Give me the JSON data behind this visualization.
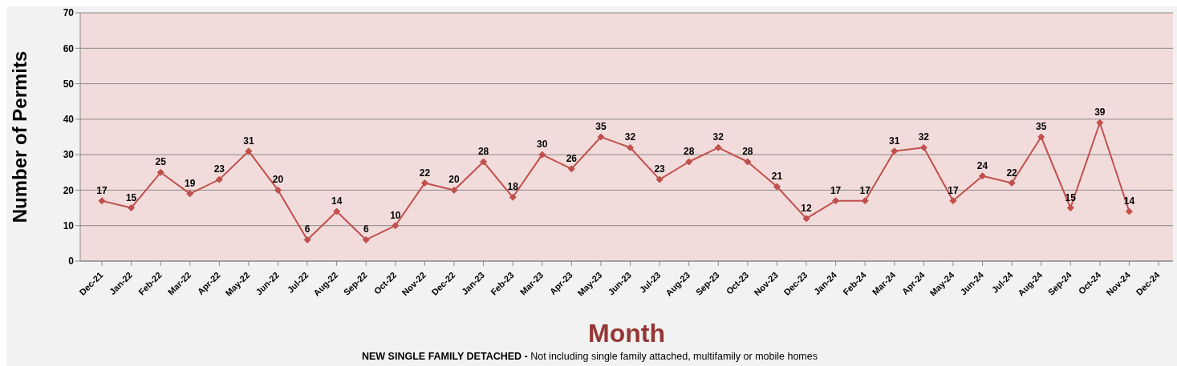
{
  "chart_data": {
    "type": "line",
    "xlabel": "Month",
    "ylabel": "Number of Permits",
    "annotations": [
      "NEW SINGLE FAMILY DETACHED -",
      "Not including single family attached, multifamily or mobile homes"
    ],
    "categories": [
      "Dec-21",
      "Jan-22",
      "Feb-22",
      "Mar-22",
      "Apr-22",
      "May-22",
      "Jun-22",
      "Jul-22",
      "Aug-22",
      "Sep-22",
      "Oct-22",
      "Nov-22",
      "Dec-22",
      "Jan-23",
      "Feb-23",
      "Mar-23",
      "Apr-23",
      "May-23",
      "Jun-23",
      "Jul-23",
      "Aug-23",
      "Sep-23",
      "Oct-23",
      "Nov-23",
      "Dec-23",
      "Jan-24",
      "Feb-24",
      "Mar-24",
      "Apr-24",
      "May-24",
      "Jun-24",
      "Jul-24",
      "Aug-24",
      "Sep-24",
      "Oct-24",
      "Nov-24",
      "Dec-24"
    ],
    "series": [
      {
        "color": "#c0504d",
        "values": [
          17,
          15,
          25,
          19,
          23,
          31,
          20,
          6,
          14,
          6,
          10,
          22,
          20,
          28,
          18,
          30,
          26,
          35,
          32,
          23,
          28,
          32,
          28,
          21,
          12,
          17,
          17,
          31,
          32,
          17,
          24,
          22,
          35,
          15,
          39,
          14,
          null
        ]
      }
    ],
    "ylim": [
      0,
      70
    ],
    "yticks": [
      0,
      10,
      20,
      30,
      40,
      50,
      60,
      70
    ],
    "grid": "y",
    "marker": "diamond",
    "line_style": "solid",
    "data_labels": true
  }
}
